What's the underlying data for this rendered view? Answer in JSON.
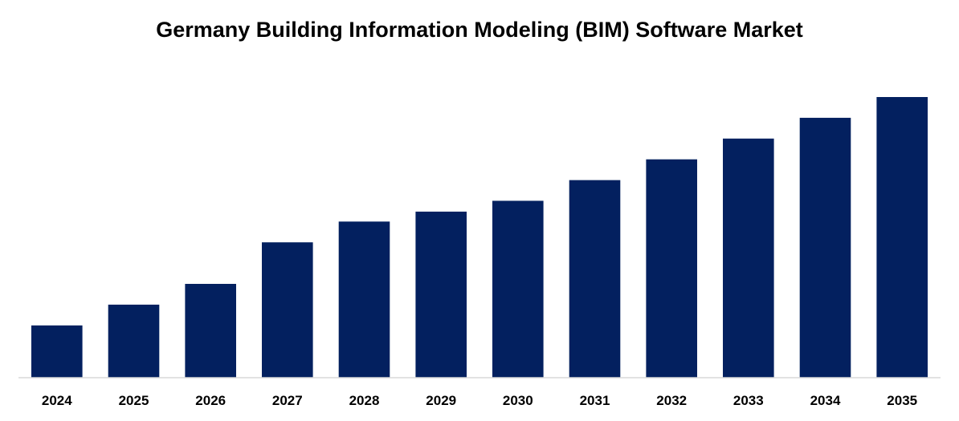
{
  "chart_data": {
    "type": "bar",
    "title": "Germany Building Information Modeling (BIM) Software Market",
    "xlabel": "",
    "ylabel": "",
    "categories": [
      "2024",
      "2025",
      "2026",
      "2027",
      "2028",
      "2029",
      "2030",
      "2031",
      "2032",
      "2033",
      "2034",
      "2035"
    ],
    "values": [
      63,
      88,
      113,
      163,
      188,
      200,
      213,
      238,
      263,
      288,
      313,
      338
    ],
    "ylim": [
      0,
      350
    ],
    "value_note": "no y-axis or data labels are printed; values are relative heights",
    "grid": false,
    "legend": "none",
    "bar_color": "#03205F",
    "axis_color": "#D9D9D9"
  }
}
